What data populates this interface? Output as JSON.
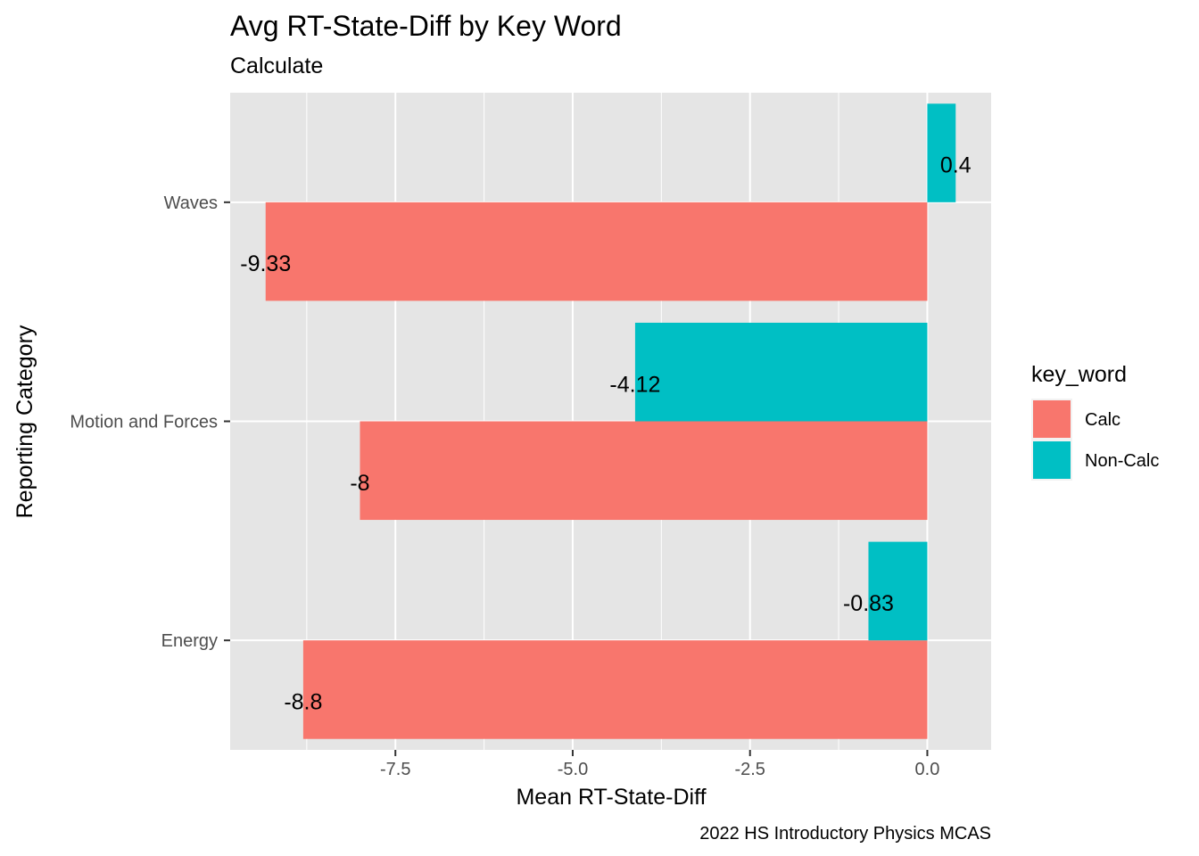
{
  "chart_data": {
    "type": "bar",
    "orientation": "horizontal",
    "title": "Avg RT-State-Diff by Key Word",
    "subtitle": "Calculate",
    "xlabel": "Mean RT-State-Diff",
    "ylabel": "Reporting Category",
    "caption": "2022 HS Introductory Physics MCAS",
    "categories": [
      "Energy",
      "Motion and Forces",
      "Waves"
    ],
    "series": [
      {
        "name": "Calc",
        "color": "#F8766D",
        "values": [
          -8.8,
          -8,
          -9.33
        ],
        "labels": [
          "-8.8",
          "-8",
          "-9.33"
        ]
      },
      {
        "name": "Non-Calc",
        "color": "#00BFC4",
        "values": [
          -0.83,
          -4.12,
          0.4
        ],
        "labels": [
          "-0.83",
          "-4.12",
          "0.4"
        ]
      }
    ],
    "xlim": [
      -9.83,
      0.9
    ],
    "xticks": [
      -7.5,
      -5.0,
      -2.5,
      0.0
    ],
    "xtick_labels": [
      "-7.5",
      "-5.0",
      "-2.5",
      "0.0"
    ],
    "grid": true,
    "panel_background": "#E5E5E5",
    "legend": {
      "title": "key_word",
      "position": "right"
    }
  }
}
